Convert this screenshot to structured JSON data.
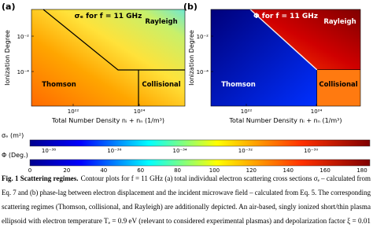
{
  "panels": [
    {
      "label": "(a)",
      "title": "σₑ for f = 11 GHz",
      "y_label": "Ionization Degree",
      "y_ticks": [
        "10⁻²",
        "10⁻⁴"
      ],
      "x_ticks": [
        "10²²",
        "10²⁴"
      ],
      "x_label": "Total Number Density nᵢ + nₙ (1/m³)",
      "regions": [
        "Rayleigh",
        "Thomson",
        "Collisional"
      ]
    },
    {
      "label": "(b)",
      "title": "Φ for f = 11 GHz",
      "y_label": "Ionization Degree",
      "y_ticks": [
        "10⁻²",
        "10⁻⁴"
      ],
      "x_ticks": [
        "10²²",
        "10²⁴"
      ],
      "x_label": "Total Number Density nᵢ + nₙ (1/m³)",
      "regions": [
        "Rayleigh",
        "Thomson",
        "Collisional"
      ]
    }
  ],
  "colorbars": [
    {
      "label": "σₑ (m²)",
      "ticks": [
        "10⁻³⁸",
        "10⁻³⁶",
        "10⁻³⁴",
        "10⁻³²",
        "10⁻³⁰"
      ]
    },
    {
      "label": "Φ (Deg.)",
      "ticks": [
        "0",
        "20",
        "40",
        "60",
        "80",
        "100",
        "120",
        "140",
        "160",
        "180"
      ]
    }
  ],
  "caption": {
    "lead": "Fig. 1 Scattering regimes.",
    "lines": [
      "Contour plots for f = 11 GHz (a) total individual electron scattering cross sections σₑ – calculated from",
      "Eq. 7 and (b) phase-lag between electron displacement and the incident microwave field – calculated from Eq. 5. The corresponding",
      "scattering regimes (Thomson, collisional, and Rayleigh) are additionally depicted. An air-based, singly ionized short/thin plasma",
      "ellipsoid with electron temperature Tₑ = 0.9 eV (relevant to considered experimental plasmas) and depolarization factor ξ = 0.01"
    ]
  }
}
